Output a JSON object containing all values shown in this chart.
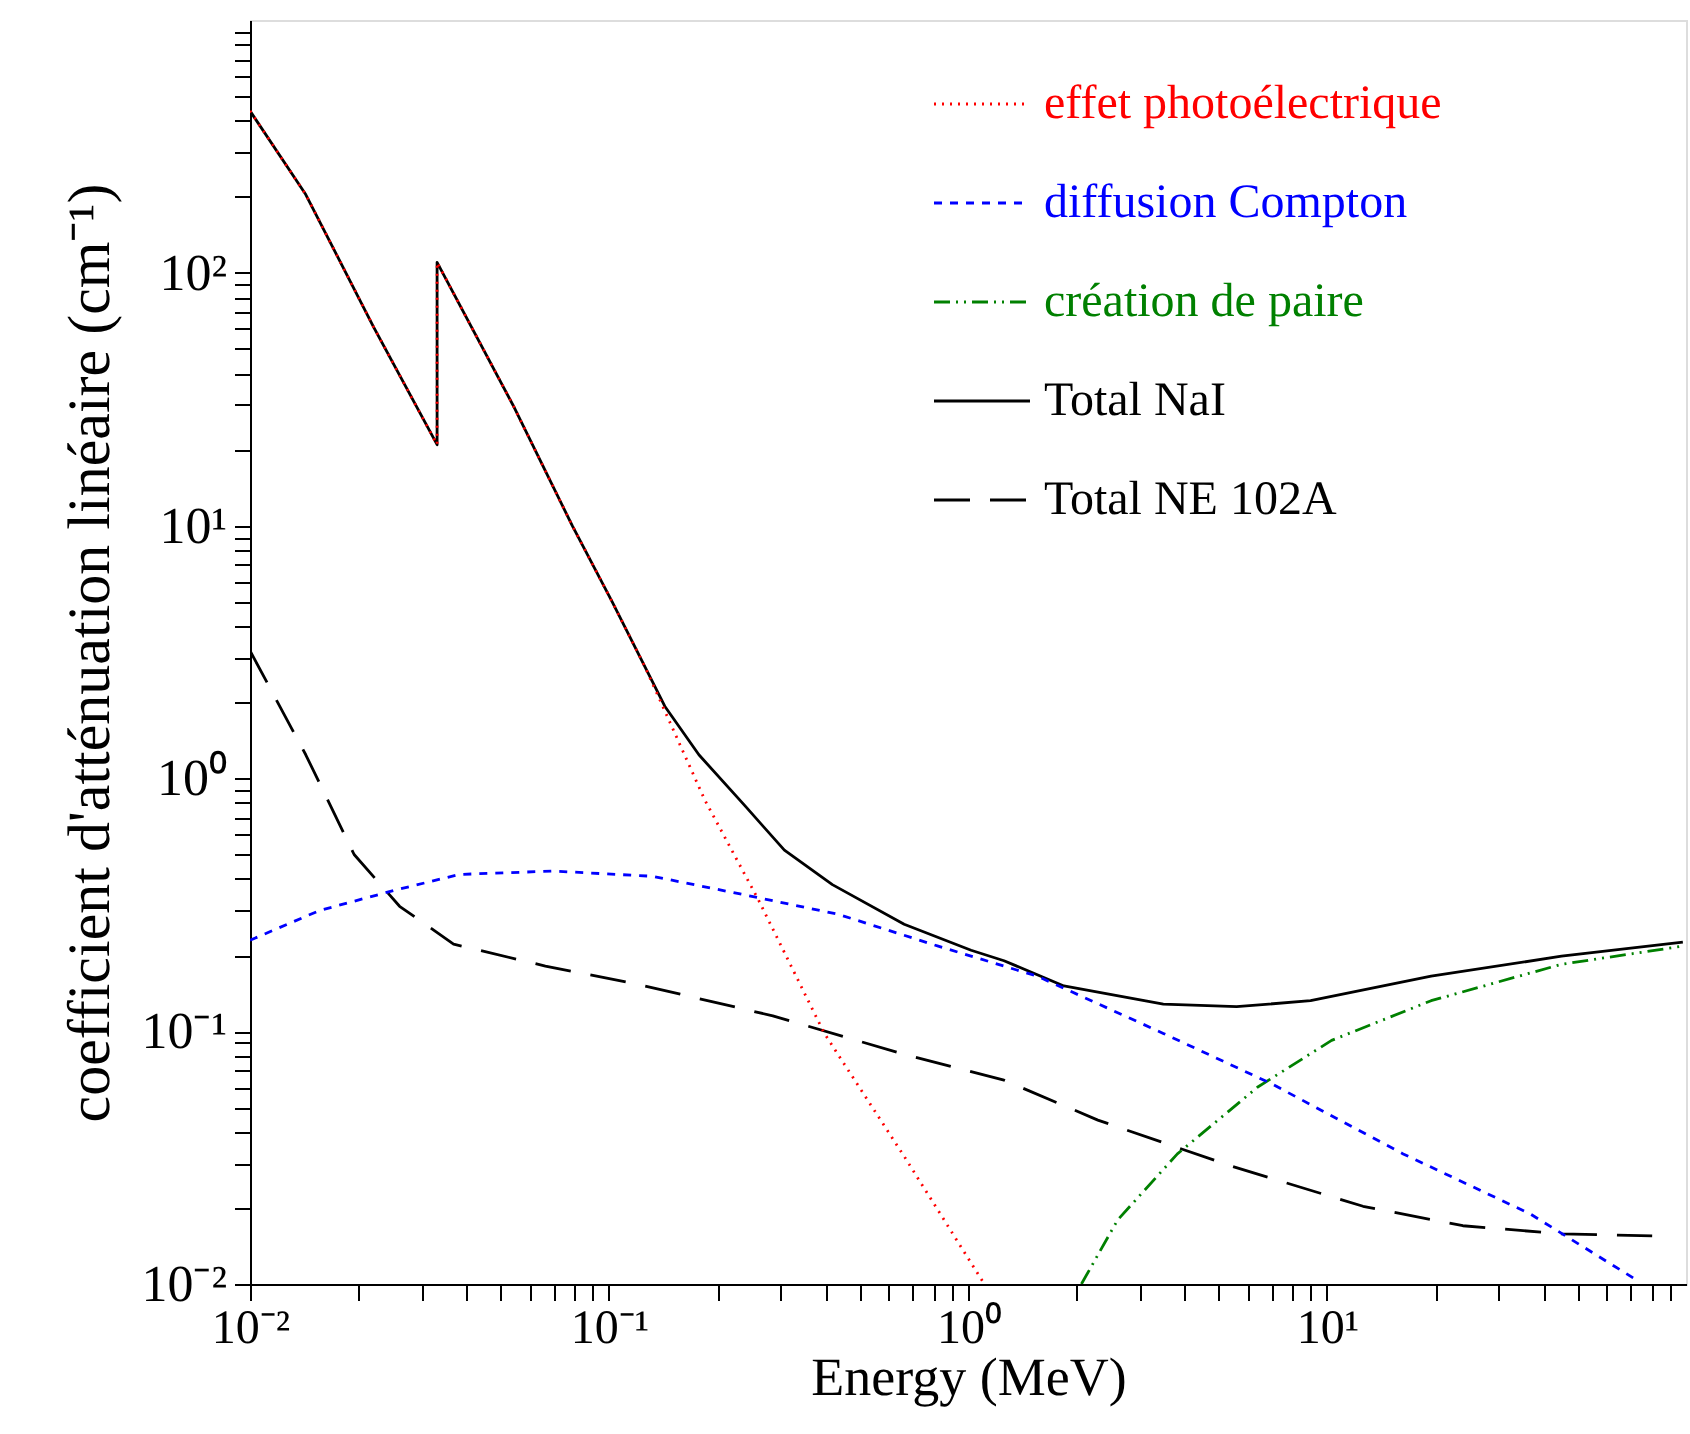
{
  "chart_data": {
    "type": "line",
    "xlabel": "Energy (MeV)",
    "ylabel": "coefficient d'atténuation linéaire (cm⁻¹)",
    "log": "xy",
    "xlim": [
      0.01,
      100
    ],
    "ylim": [
      0.01,
      1000
    ],
    "xticks": [
      {
        "value": 0.01,
        "label": "10⁻²"
      },
      {
        "value": 0.02,
        "label": null
      },
      {
        "value": 0.03,
        "label": null
      },
      {
        "value": 0.04,
        "label": null
      },
      {
        "value": 0.05,
        "label": null
      },
      {
        "value": 0.06,
        "label": null
      },
      {
        "value": 0.07,
        "label": null
      },
      {
        "value": 0.08,
        "label": null
      },
      {
        "value": 0.09,
        "label": null
      },
      {
        "value": 0.1,
        "label": "10⁻¹"
      },
      {
        "value": 0.2,
        "label": null
      },
      {
        "value": 0.3,
        "label": null
      },
      {
        "value": 0.4,
        "label": null
      },
      {
        "value": 0.5,
        "label": null
      },
      {
        "value": 0.6,
        "label": null
      },
      {
        "value": 0.7,
        "label": null
      },
      {
        "value": 0.8,
        "label": null
      },
      {
        "value": 0.9,
        "label": null
      },
      {
        "value": 1,
        "label": "10⁰"
      },
      {
        "value": 2,
        "label": null
      },
      {
        "value": 3,
        "label": null
      },
      {
        "value": 4,
        "label": null
      },
      {
        "value": 5,
        "label": null
      },
      {
        "value": 6,
        "label": null
      },
      {
        "value": 7,
        "label": null
      },
      {
        "value": 8,
        "label": null
      },
      {
        "value": 9,
        "label": null
      },
      {
        "value": 10,
        "label": "10¹"
      },
      {
        "value": 20,
        "label": null
      },
      {
        "value": 30,
        "label": null
      },
      {
        "value": 40,
        "label": null
      },
      {
        "value": 50,
        "label": null
      },
      {
        "value": 60,
        "label": null
      },
      {
        "value": 70,
        "label": null
      },
      {
        "value": 80,
        "label": null
      },
      {
        "value": 90,
        "label": null
      }
    ],
    "yticks": [
      {
        "value": 0.01,
        "label": "10⁻²"
      },
      {
        "value": 0.02,
        "label": null
      },
      {
        "value": 0.03,
        "label": null
      },
      {
        "value": 0.04,
        "label": null
      },
      {
        "value": 0.05,
        "label": null
      },
      {
        "value": 0.06,
        "label": null
      },
      {
        "value": 0.07,
        "label": null
      },
      {
        "value": 0.08,
        "label": null
      },
      {
        "value": 0.09,
        "label": null
      },
      {
        "value": 0.1,
        "label": "10⁻¹"
      },
      {
        "value": 0.2,
        "label": null
      },
      {
        "value": 0.3,
        "label": null
      },
      {
        "value": 0.4,
        "label": null
      },
      {
        "value": 0.5,
        "label": null
      },
      {
        "value": 0.6,
        "label": null
      },
      {
        "value": 0.7,
        "label": null
      },
      {
        "value": 0.8,
        "label": null
      },
      {
        "value": 0.9,
        "label": null
      },
      {
        "value": 1,
        "label": "10⁰"
      },
      {
        "value": 2,
        "label": null
      },
      {
        "value": 3,
        "label": null
      },
      {
        "value": 4,
        "label": null
      },
      {
        "value": 5,
        "label": null
      },
      {
        "value": 6,
        "label": null
      },
      {
        "value": 7,
        "label": null
      },
      {
        "value": 8,
        "label": null
      },
      {
        "value": 9,
        "label": null
      },
      {
        "value": 10,
        "label": "10¹"
      },
      {
        "value": 20,
        "label": null
      },
      {
        "value": 30,
        "label": null
      },
      {
        "value": 40,
        "label": null
      },
      {
        "value": 50,
        "label": null
      },
      {
        "value": 60,
        "label": null
      },
      {
        "value": 70,
        "label": null
      },
      {
        "value": 80,
        "label": null
      },
      {
        "value": 90,
        "label": null
      },
      {
        "value": 100,
        "label": "10²"
      },
      {
        "value": 200,
        "label": null
      },
      {
        "value": 300,
        "label": null
      },
      {
        "value": 400,
        "label": null
      },
      {
        "value": 500,
        "label": null
      },
      {
        "value": 600,
        "label": null
      },
      {
        "value": 700,
        "label": null
      },
      {
        "value": 800,
        "label": null
      },
      {
        "value": 900,
        "label": null
      }
    ],
    "grid": false,
    "legend": "top right",
    "series": [
      {
        "name": "effet photoélectrique",
        "color": "#ff0000",
        "line_style": "dotted",
        "x": [
          0.01,
          0.0143,
          0.0221,
          0.0332,
          0.0332,
          0.054,
          0.079,
          0.102,
          0.126,
          0.185,
          0.261,
          0.398,
          0.664,
          1.11
        ],
        "values": [
          437,
          204,
          61,
          20.9,
          110,
          30,
          10,
          5.0,
          2.76,
          0.82,
          0.33,
          0.098,
          0.032,
          0.01
        ]
      },
      {
        "name": "diffusion Compton",
        "color": "#0000ff",
        "line_style": "dashed",
        "x": [
          0.01,
          0.0156,
          0.0251,
          0.0383,
          0.07,
          0.132,
          0.23,
          0.435,
          0.826,
          1.56,
          3.5,
          7.0,
          16.3,
          36.9,
          72.6
        ],
        "values": [
          0.229,
          0.3,
          0.36,
          0.417,
          0.43,
          0.41,
          0.35,
          0.29,
          0.217,
          0.165,
          0.098,
          0.062,
          0.0327,
          0.0189,
          0.0104
        ]
      },
      {
        "name": "création de paire",
        "color": "#008000",
        "line_style": "dashdot",
        "x": [
          2.07,
          2.61,
          3.83,
          6.4,
          10.3,
          19.5,
          45,
          98
        ],
        "values": [
          0.01,
          0.0179,
          0.0327,
          0.06,
          0.092,
          0.132,
          0.184,
          0.217
        ]
      },
      {
        "name": "Total NaI",
        "color": "#000000",
        "line_style": "solid",
        "x": [
          0.01,
          0.0143,
          0.0221,
          0.0332,
          0.0332,
          0.054,
          0.079,
          0.102,
          0.143,
          0.178,
          0.239,
          0.308,
          0.419,
          0.664,
          1.02,
          1.26,
          1.85,
          3.5,
          5.6,
          9.0,
          19.5,
          45,
          98
        ],
        "values": [
          437,
          204,
          61,
          20.9,
          110,
          30,
          10,
          5.0,
          1.93,
          1.24,
          0.78,
          0.52,
          0.38,
          0.265,
          0.209,
          0.19,
          0.151,
          0.128,
          0.125,
          0.132,
          0.165,
          0.198,
          0.225
        ]
      },
      {
        "name": "Total NE 102A",
        "color": "#000000",
        "line_style": "longdash",
        "x": [
          0.01,
          0.0143,
          0.0195,
          0.0261,
          0.0369,
          0.0665,
          0.121,
          0.286,
          0.664,
          1.26,
          2.3,
          5.4,
          12.6,
          23.9,
          45,
          80.5
        ],
        "values": [
          3.2,
          1.24,
          0.5,
          0.312,
          0.221,
          0.181,
          0.153,
          0.115,
          0.081,
          0.064,
          0.0445,
          0.0293,
          0.0203,
          0.017,
          0.0158,
          0.0155
        ]
      }
    ]
  }
}
